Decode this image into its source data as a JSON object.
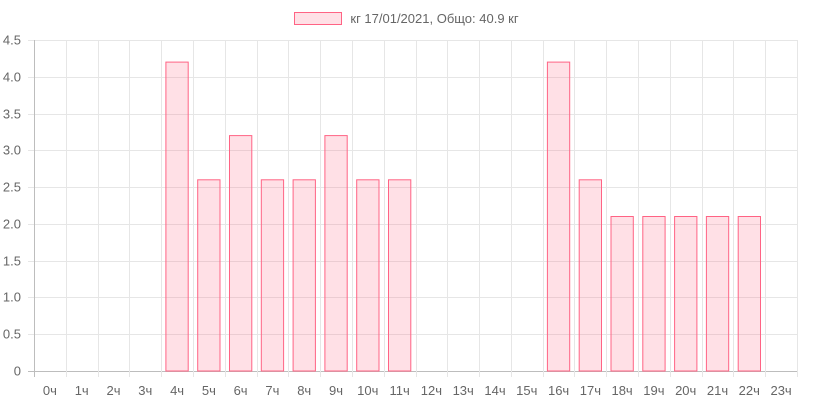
{
  "chart_data": {
    "type": "bar",
    "legend": {
      "label": "кг 17/01/2021, Общо: 40.9 кг",
      "position": "top-center"
    },
    "categories": [
      "0ч",
      "1ч",
      "2ч",
      "3ч",
      "4ч",
      "5ч",
      "6ч",
      "7ч",
      "8ч",
      "9ч",
      "10ч",
      "11ч",
      "12ч",
      "13ч",
      "14ч",
      "15ч",
      "16ч",
      "17ч",
      "18ч",
      "19ч",
      "20ч",
      "21ч",
      "22ч",
      "23ч"
    ],
    "series": [
      {
        "name": "кг 17/01/2021, Общо: 40.9 кг",
        "values": [
          0,
          0,
          0,
          0,
          4.2,
          2.6,
          3.2,
          2.6,
          2.6,
          3.2,
          2.6,
          2.6,
          0,
          0,
          0,
          0,
          4.2,
          2.6,
          2.1,
          2.1,
          2.1,
          2.1,
          2.1,
          0
        ]
      }
    ],
    "y_ticks": [
      "0",
      "0.5",
      "1.0",
      "1.5",
      "2.0",
      "2.5",
      "3.0",
      "3.5",
      "4.0",
      "4.5"
    ],
    "ylim": [
      0,
      4.5
    ],
    "grid": true,
    "colors": {
      "bar_fill": "rgba(255, 99, 132, 0.2)",
      "bar_border": "#ff6384",
      "grid": "#e6e6e6",
      "axis": "#bdbdbd",
      "text": "#666666"
    }
  }
}
